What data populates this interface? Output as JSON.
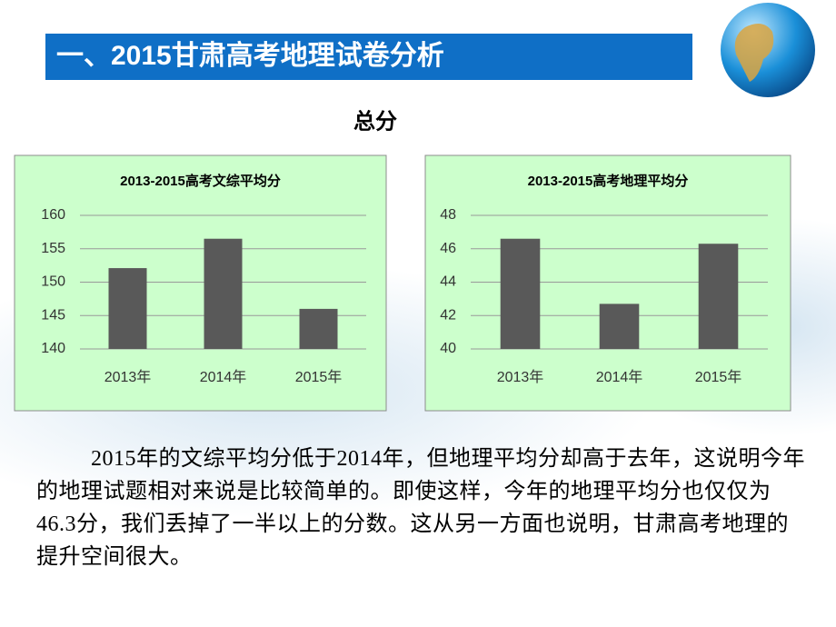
{
  "header": {
    "title": "一、2015甘肃高考地理试卷分析"
  },
  "subtitle": "总分",
  "chart_data": [
    {
      "type": "bar",
      "title": "2013-2015高考文综平均分",
      "categories": [
        "2013年",
        "2014年",
        "2015年"
      ],
      "values": [
        152.1,
        156.5,
        146.0
      ],
      "color": "#595959",
      "ylim": [
        140,
        160
      ],
      "yticks": [
        140,
        145,
        150,
        155,
        160
      ],
      "grid": true
    },
    {
      "type": "bar",
      "title": "2013-2015高考地理平均分",
      "categories": [
        "2013年",
        "2014年",
        "2015年"
      ],
      "values": [
        46.6,
        42.7,
        46.3
      ],
      "color": "#595959",
      "ylim": [
        40,
        48
      ],
      "yticks": [
        40,
        42,
        44,
        46,
        48
      ],
      "grid": true
    }
  ],
  "paragraph": "2015年的文综平均分低于2014年，但地理平均分却高于去年，这说明今年的地理试题相对来说是比较简单的。即使这样，今年的地理平均分也仅仅为46.3分，我们丢掉了一半以上的分数。这从另一方面也说明，甘肃高考地理的提升空间很大。"
}
